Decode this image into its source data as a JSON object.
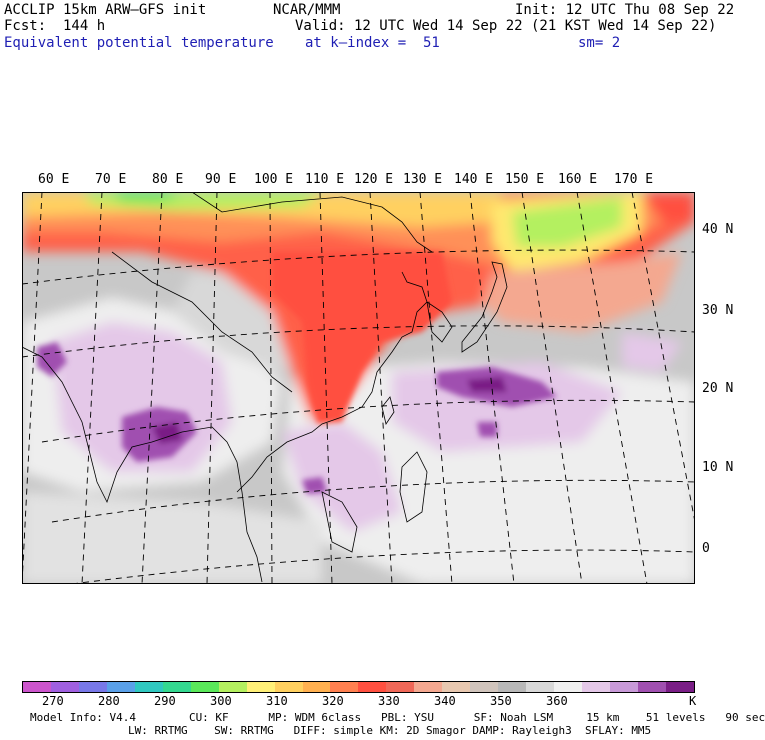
{
  "header": {
    "left1": "ACCLIP 15km ARW–GFS init",
    "left2": "Fcst:  144 h",
    "left3": "Equivalent potential temperature",
    "center1": "NCAR/MMM",
    "center2": "Valid: 12 UTC Wed 14 Sep 22 (21 KST Wed 14 Sep 22)",
    "center3": "at k–index =  51",
    "right1": "Init: 12 UTC Thu 08 Sep 22",
    "right3": "sm= 2"
  },
  "lon_labels": [
    "60 E",
    "70 E",
    "80 E",
    "90 E",
    "100 E",
    "110 E",
    "120 E",
    "130 E",
    "140 E",
    "150 E",
    "160 E",
    "170 E"
  ],
  "lat_labels": [
    "40 N",
    "30 N",
    "20 N",
    "10 N",
    "0"
  ],
  "colorbar": {
    "colors": [
      "#cc55cc",
      "#a060e0",
      "#7878e8",
      "#5aa0e8",
      "#30c8c0",
      "#34d890",
      "#5ae85a",
      "#b4f060",
      "#fff078",
      "#ffd060",
      "#ffb050",
      "#ff8050",
      "#ff5040",
      "#f06858",
      "#f4a890",
      "#e8c8b0",
      "#d0c4bc",
      "#b8b8b8",
      "#d8d8d8",
      "#f0f0f0",
      "#e4c8e8",
      "#c89ad8",
      "#a050b0",
      "#7a1e86"
    ],
    "ticks": [
      "270",
      "280",
      "290",
      "300",
      "310",
      "320",
      "330",
      "340",
      "350",
      "360"
    ],
    "unit": "K"
  },
  "model_info": {
    "line1": "Model Info: V4.4        CU: KF      MP: WDM 6class   PBL: YSU      SF: Noah LSM     15 km    51 levels   90 sec",
    "line2": "LW: RRTMG    SW: RRTMG   DIFF: simple KM: 2D Smagor DAMP: Rayleigh3  SFLAY: MM5"
  }
}
